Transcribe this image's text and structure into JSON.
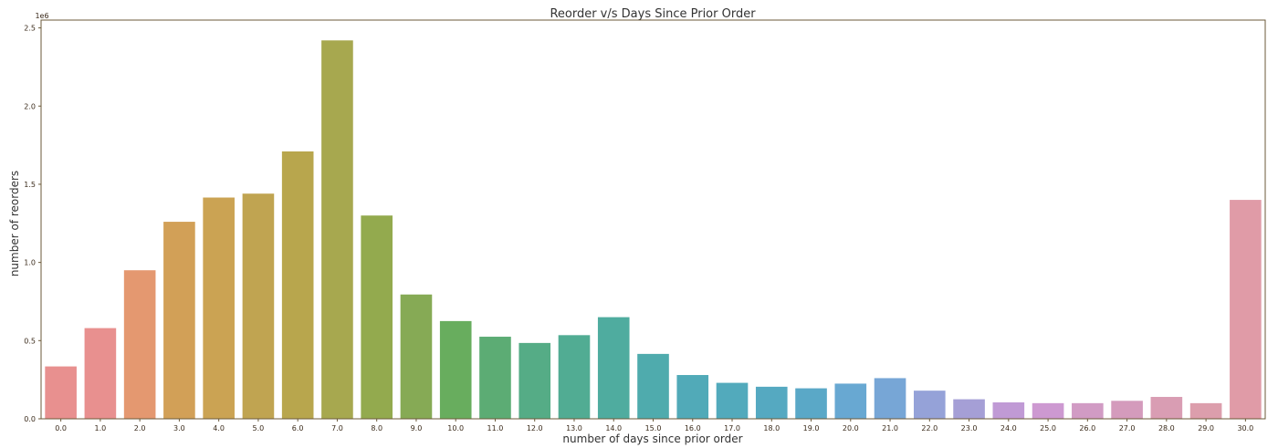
{
  "chart_data": {
    "type": "bar",
    "title": "Reorder v/s Days Since Prior Order",
    "xlabel": "number of days since prior order",
    "ylabel": "number of reorders",
    "y_offset_label": "1e6",
    "ylim": [
      0,
      2.55
    ],
    "yticks": [
      0.0,
      0.5,
      1.0,
      1.5,
      2.0,
      2.5
    ],
    "ytick_labels": [
      "0.0",
      "0.5",
      "1.0",
      "1.5",
      "2.0",
      "2.5"
    ],
    "grid": false,
    "categories": [
      "0.0",
      "1.0",
      "2.0",
      "3.0",
      "4.0",
      "5.0",
      "6.0",
      "7.0",
      "8.0",
      "9.0",
      "10.0",
      "11.0",
      "12.0",
      "13.0",
      "14.0",
      "15.0",
      "16.0",
      "17.0",
      "18.0",
      "19.0",
      "20.0",
      "21.0",
      "22.0",
      "23.0",
      "24.0",
      "25.0",
      "26.0",
      "27.0",
      "28.0",
      "29.0",
      "30.0"
    ],
    "values": [
      0.335,
      0.58,
      0.95,
      1.26,
      1.415,
      1.44,
      1.71,
      2.42,
      1.3,
      0.795,
      0.625,
      0.525,
      0.485,
      0.535,
      0.65,
      0.415,
      0.28,
      0.23,
      0.205,
      0.195,
      0.225,
      0.26,
      0.18,
      0.125,
      0.105,
      0.1,
      0.1,
      0.115,
      0.14,
      0.1,
      1.4
    ],
    "colors": [
      "#e8908f",
      "#e8908f",
      "#e49870",
      "#d2a057",
      "#cba353",
      "#c0a451",
      "#b8a64d",
      "#a7a84f",
      "#93aa4e",
      "#86aa55",
      "#68ad5e",
      "#5cac74",
      "#55ac86",
      "#51ac93",
      "#4fac9f",
      "#4fabad",
      "#51aab8",
      "#52aabc",
      "#55a9c1",
      "#5aa8c7",
      "#68a8d2",
      "#77a6d6",
      "#95a2d8",
      "#a59fd6",
      "#c09ad5",
      "#cd99d1",
      "#d19bc4",
      "#d49bbc",
      "#d99db3",
      "#dc9eac",
      "#e09ba7"
    ]
  }
}
